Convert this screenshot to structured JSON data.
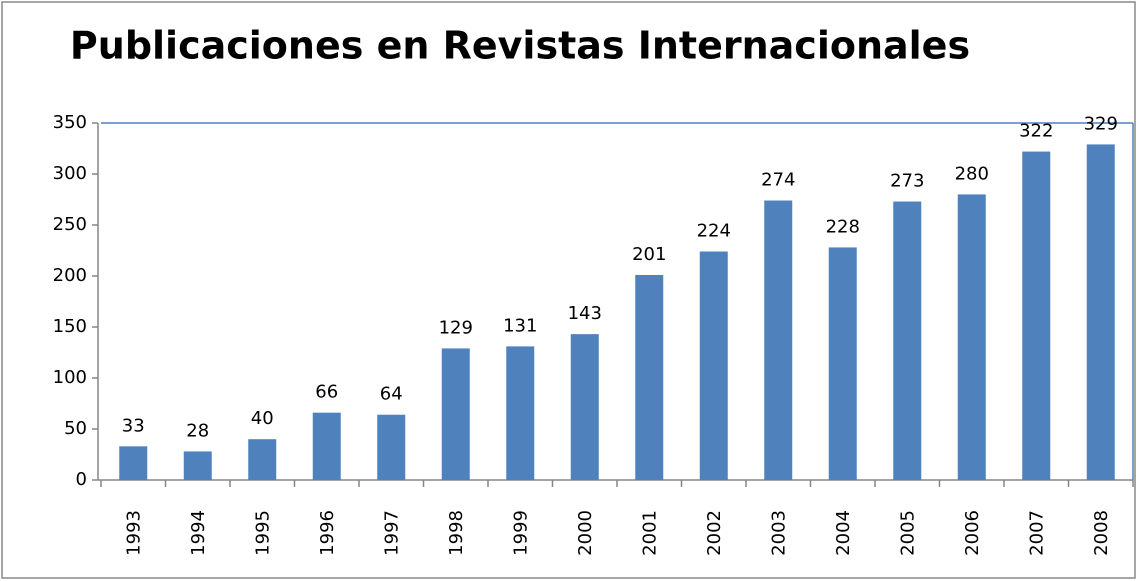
{
  "chart_data": {
    "type": "bar",
    "title": "Publicaciones en Revistas Internacionales",
    "categories": [
      "1993",
      "1994",
      "1995",
      "1996",
      "1997",
      "1998",
      "1999",
      "2000",
      "2001",
      "2002",
      "2003",
      "2004",
      "2005",
      "2006",
      "2007",
      "2008"
    ],
    "values": [
      33,
      28,
      40,
      66,
      64,
      129,
      131,
      143,
      201,
      224,
      274,
      228,
      273,
      280,
      322,
      329
    ],
    "color": "#4f81bd",
    "ylim": [
      0,
      350
    ],
    "yticks": [
      0,
      50,
      100,
      150,
      200,
      250,
      300,
      350
    ],
    "grid": false
  }
}
